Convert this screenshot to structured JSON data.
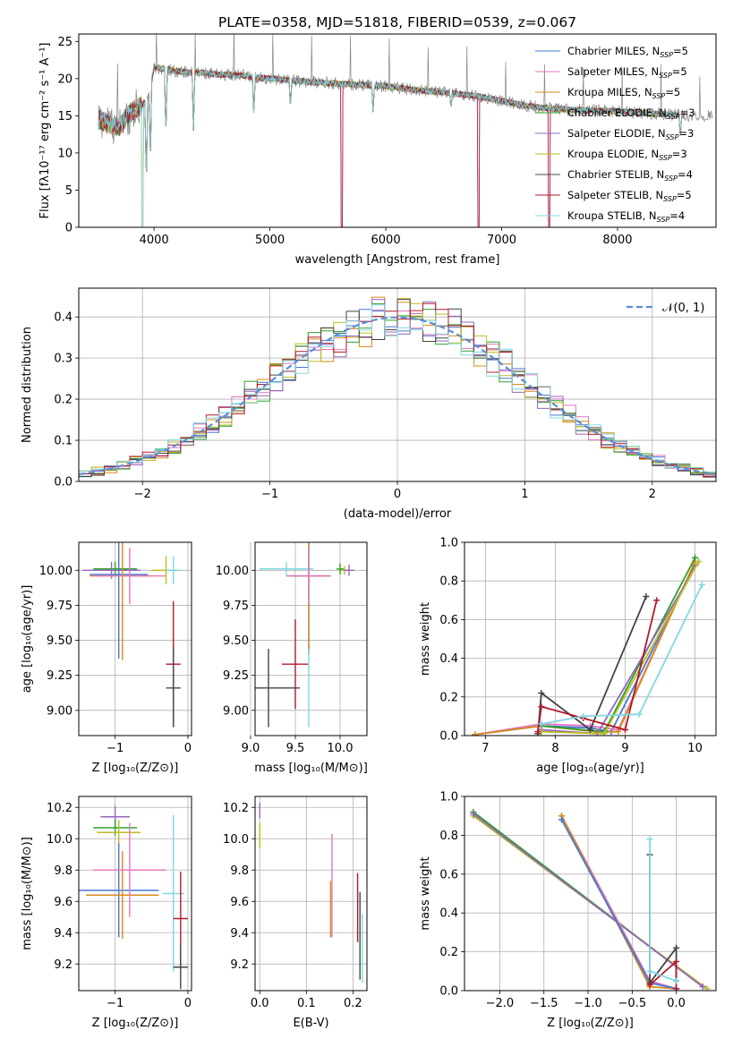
{
  "chart_data": [
    {
      "id": "spectrum",
      "type": "line",
      "title": "PLATE=0358, MJD=51818, FIBERID=0539, z=0.067",
      "xlabel": "wavelength [Angstrom, rest frame]",
      "ylabel": "Flux [fλ10⁻¹⁷ erg cm⁻² s⁻¹ A⁻¹]",
      "xlim": [
        3350,
        8850
      ],
      "ylim": [
        0,
        26
      ],
      "xticks": [
        4000,
        5000,
        6000,
        7000,
        8000
      ],
      "yticks": [
        0,
        5,
        10,
        15,
        20,
        25
      ],
      "grid": false,
      "legend_position": "top-right",
      "legend": [
        {
          "name": "Chabrier MILES, N_SSP=5",
          "main": "Chabrier MILES, N",
          "sub": "SSP",
          "tail": "=5",
          "color": "#4878d0"
        },
        {
          "name": "Salpeter MILES, N_SSP=5",
          "main": "Salpeter MILES, N",
          "sub": "SSP",
          "tail": "=5",
          "color": "#e377c2"
        },
        {
          "name": "Kroupa MILES, N_SSP=5",
          "main": "Kroupa MILES, N",
          "sub": "SSP",
          "tail": "=5",
          "color": "#d68b1a"
        },
        {
          "name": "Chabrier ELODIE, N_SSP=3",
          "main": "Chabrier ELODIE, N",
          "sub": "SSP",
          "tail": "=3",
          "color": "#2ca02c"
        },
        {
          "name": "Salpeter ELODIE, N_SSP=3",
          "main": "Salpeter ELODIE, N",
          "sub": "SSP",
          "tail": "=3",
          "color": "#9467bd"
        },
        {
          "name": "Kroupa ELODIE, N_SSP=3",
          "main": "Kroupa ELODIE, N",
          "sub": "SSP",
          "tail": "=3",
          "color": "#bcbd22"
        },
        {
          "name": "Chabrier STELIB, N_SSP=4",
          "main": "Chabrier STELIB, N",
          "sub": "SSP",
          "tail": "=4",
          "color": "#444444"
        },
        {
          "name": "Salpeter STELIB, N_SSP=5",
          "main": "Salpeter STELIB, N",
          "sub": "SSP",
          "tail": "=5",
          "color": "#b2182b"
        },
        {
          "name": "Kroupa STELIB, N_SSP=4",
          "main": "Kroupa STELIB, N",
          "sub": "SSP",
          "tail": "=4",
          "color": "#80d8e0"
        }
      ],
      "continuum": {
        "x": [
          3520,
          3600,
          3700,
          3800,
          3900,
          3950,
          4000,
          4100,
          4200,
          4300,
          4400,
          4500,
          4700,
          5000,
          5300,
          5600,
          6000,
          6300,
          6600,
          6800,
          7000,
          7200,
          7400,
          7600,
          8000,
          8400,
          8800
        ],
        "y": [
          14.5,
          14.0,
          13.5,
          15.5,
          16.5,
          17.5,
          21.5,
          21.3,
          21.0,
          20.8,
          20.8,
          20.6,
          20.5,
          20.0,
          19.6,
          19.3,
          19.0,
          18.4,
          18.0,
          17.6,
          17.0,
          16.4,
          16.0,
          15.8,
          15.6,
          15.2,
          15.0
        ]
      },
      "absorption_lines": [
        {
          "x": 3933,
          "y": 5.5
        },
        {
          "x": 3968,
          "y": 8.5
        },
        {
          "x": 4102,
          "y": 12
        },
        {
          "x": 4340,
          "y": 13
        },
        {
          "x": 4861,
          "y": 15
        },
        {
          "x": 5177,
          "y": 16
        },
        {
          "x": 5890,
          "y": 15.5
        },
        {
          "x": 6563,
          "y": 16
        },
        {
          "x": 8542,
          "y": 12
        }
      ],
      "gap_drops": [
        {
          "x": 3900,
          "y": 0
        },
        {
          "x": 5620,
          "y": 0
        },
        {
          "x": 6800,
          "y": 0
        },
        {
          "x": 7410,
          "y": 0
        }
      ]
    },
    {
      "id": "residuals",
      "type": "step",
      "xlabel": "(data-model)/error",
      "ylabel": "Normed distribution",
      "xlim": [
        -2.5,
        2.5
      ],
      "ylim": [
        0,
        0.47
      ],
      "xticks": [
        -2,
        -1,
        0,
        1,
        2
      ],
      "yticks": [
        0.0,
        0.1,
        0.2,
        0.3,
        0.4
      ],
      "grid": true,
      "legend": "𝒩(0, 1)",
      "bins": {
        "start": -2.5,
        "width": 0.1,
        "count": 50
      },
      "gaussian_mean": 0,
      "gaussian_sigma": 1,
      "gaussian_color": "#5a8fd6"
    },
    {
      "id": "age-vs-Z",
      "type": "errorbar",
      "xlabel": "Z [log₁₀(Z/Z⊙)]",
      "ylabel": "age  [log₁₀(age/yr)]",
      "xlim": [
        -1.5,
        0.05
      ],
      "ylim": [
        8.82,
        10.2
      ],
      "xticks": [
        -1,
        0
      ],
      "yticks": [
        9.0,
        9.25,
        9.5,
        9.75,
        10.0
      ],
      "grid": true,
      "points": [
        {
          "x": -1.0,
          "y": 10.01,
          "xe": 0.3,
          "ye": 0.05,
          "c": "#2ca02c"
        },
        {
          "x": -1.05,
          "y": 10.0,
          "xe": 0.4,
          "ye": 0.06,
          "c": "#9467bd"
        },
        {
          "x": -0.95,
          "y": 9.97,
          "xe": 0.4,
          "ye": 0.6,
          "c": "#4878d0"
        },
        {
          "x": -0.9,
          "y": 9.96,
          "xe": 0.45,
          "ye": 0.6,
          "c": "#d68b1a"
        },
        {
          "x": -0.8,
          "y": 9.96,
          "xe": 0.5,
          "ye": 0.2,
          "c": "#e377c2"
        },
        {
          "x": -0.3,
          "y": 10.0,
          "xe": 0.2,
          "ye": 0.1,
          "c": "#bcbd22"
        },
        {
          "x": -0.2,
          "y": 10.0,
          "xe": 0.1,
          "ye": 0.1,
          "c": "#80d8e0"
        },
        {
          "x": -0.2,
          "y": 9.33,
          "xe": 0.1,
          "ye": 0.45,
          "c": "#b2182b"
        },
        {
          "x": -0.2,
          "y": 9.16,
          "xe": 0.1,
          "ye": 0.28,
          "c": "#444444"
        }
      ]
    },
    {
      "id": "age-vs-mass",
      "type": "errorbar",
      "xlabel": "mass [log₁₀(M/M⊙)]",
      "ylabel": "",
      "xlim": [
        9.05,
        10.3
      ],
      "ylim": [
        8.82,
        10.2
      ],
      "xticks": [
        9.0,
        9.5,
        10.0
      ],
      "yticks": [
        9.0,
        9.25,
        9.5,
        9.75,
        10.0
      ],
      "grid": true,
      "points": [
        {
          "x": 9.4,
          "y": 10.01,
          "xe": 0.3,
          "ye": 0.05,
          "c": "#80d8e0"
        },
        {
          "x": 10.05,
          "y": 10.0,
          "xe": 0.05,
          "ye": 0.03,
          "c": "#bcbd22"
        },
        {
          "x": 10.1,
          "y": 10.0,
          "xe": 0.06,
          "ye": 0.04,
          "c": "#9467bd"
        },
        {
          "x": 10.0,
          "y": 10.01,
          "xe": 0.04,
          "ye": 0.04,
          "c": "#2ca02c"
        },
        {
          "x": 9.65,
          "y": 9.96,
          "xe": 0.2,
          "ye": 0.56,
          "c": "#4878d0"
        },
        {
          "x": 9.65,
          "y": 9.96,
          "xe": 0.25,
          "ye": 0.55,
          "c": "#d68b1a"
        },
        {
          "x": 9.65,
          "y": 9.96,
          "xe": 0.25,
          "ye": 0.2,
          "c": "#e377c2"
        },
        {
          "x": 9.5,
          "y": 9.33,
          "xe": 0.15,
          "ye": 0.32,
          "c": "#b2182b"
        },
        {
          "x": 9.2,
          "y": 9.16,
          "xe": 0.35,
          "ye": 0.28,
          "c": "#444444"
        },
        {
          "x": 9.65,
          "y": 9.16,
          "xe": 0.0,
          "ye": 0.28,
          "c": "#80d8e0"
        }
      ]
    },
    {
      "id": "weight-vs-age",
      "type": "line",
      "xlabel": "age  [log₁₀(age/yr)]",
      "ylabel": "mass weight",
      "xlim": [
        6.7,
        10.3
      ],
      "ylim": [
        0,
        1.0
      ],
      "xticks": [
        7,
        8,
        9,
        10
      ],
      "yticks": [
        0.0,
        0.2,
        0.4,
        0.6,
        0.8,
        1.0
      ],
      "grid": true,
      "series": [
        {
          "c": "#4878d0",
          "x": [
            6.85,
            7.8,
            8.5,
            8.8,
            10.0
          ],
          "y": [
            0.005,
            0.05,
            0.04,
            0.02,
            0.88
          ]
        },
        {
          "c": "#e377c2",
          "x": [
            6.85,
            7.8,
            8.5,
            8.9,
            10.0
          ],
          "y": [
            0.005,
            0.06,
            0.05,
            0.03,
            0.9
          ]
        },
        {
          "c": "#d68b1a",
          "x": [
            6.85,
            7.8,
            8.6,
            8.9,
            10.0
          ],
          "y": [
            0.005,
            0.05,
            0.02,
            0.02,
            0.9
          ]
        },
        {
          "c": "#2ca02c",
          "x": [
            7.8,
            8.7,
            10.0
          ],
          "y": [
            0.05,
            0.02,
            0.92
          ]
        },
        {
          "c": "#9467bd",
          "x": [
            7.8,
            8.6,
            10.05
          ],
          "y": [
            0.03,
            0.01,
            0.9
          ]
        },
        {
          "c": "#bcbd22",
          "x": [
            7.8,
            8.7,
            10.05
          ],
          "y": [
            0.02,
            0.01,
            0.9
          ]
        },
        {
          "c": "#444444",
          "x": [
            7.75,
            7.8,
            8.5,
            9.3
          ],
          "y": [
            0.01,
            0.22,
            0.03,
            0.72
          ]
        },
        {
          "c": "#b2182b",
          "x": [
            7.75,
            7.8,
            8.4,
            9.0,
            9.45
          ],
          "y": [
            0.02,
            0.15,
            0.09,
            0.03,
            0.7
          ]
        },
        {
          "c": "#80d8e0",
          "x": [
            7.8,
            8.4,
            9.2,
            10.1
          ],
          "y": [
            0.06,
            0.1,
            0.11,
            0.78
          ]
        }
      ]
    },
    {
      "id": "mass-vs-Z",
      "type": "errorbar",
      "xlabel": "Z [log₁₀(Z/Z⊙)]",
      "ylabel": "mass [log₁₀(M/M⊙)]",
      "xlim": [
        -1.5,
        0.05
      ],
      "ylim": [
        9.03,
        10.27
      ],
      "xticks": [
        -1,
        0
      ],
      "yticks": [
        9.2,
        9.4,
        9.6,
        9.8,
        10.0,
        10.2
      ],
      "grid": true,
      "points": [
        {
          "x": -1.0,
          "y": 10.14,
          "xe": 0.2,
          "ye": 0.07,
          "c": "#9467bd"
        },
        {
          "x": -1.0,
          "y": 10.07,
          "xe": 0.3,
          "ye": 0.05,
          "c": "#2ca02c"
        },
        {
          "x": -0.95,
          "y": 10.04,
          "xe": 0.3,
          "ye": 0.08,
          "c": "#bcbd22"
        },
        {
          "x": -0.95,
          "y": 9.67,
          "xe": 0.55,
          "ye": 0.3,
          "c": "#4878d0"
        },
        {
          "x": -0.9,
          "y": 9.64,
          "xe": 0.5,
          "ye": 0.28,
          "c": "#d68b1a"
        },
        {
          "x": -0.8,
          "y": 9.8,
          "xe": 0.5,
          "ye": 0.3,
          "c": "#e377c2"
        },
        {
          "x": -0.2,
          "y": 9.65,
          "xe": 0.15,
          "ye": 0.5,
          "c": "#80d8e0"
        },
        {
          "x": -0.1,
          "y": 9.49,
          "xe": 0.1,
          "ye": 0.3,
          "c": "#b2182b"
        },
        {
          "x": -0.1,
          "y": 9.18,
          "xe": 0.1,
          "ye": 0.14,
          "c": "#444444"
        }
      ]
    },
    {
      "id": "mass-vs-EBV",
      "type": "errorbar",
      "xlabel": "E(B-V)",
      "ylabel": "",
      "xlim": [
        -0.01,
        0.23
      ],
      "ylim": [
        9.03,
        10.27
      ],
      "xticks": [
        0.0,
        0.1,
        0.2
      ],
      "yticks": [
        9.2,
        9.4,
        9.6,
        9.8,
        10.0,
        10.2
      ],
      "grid": true,
      "points": [
        {
          "x": 0.0,
          "y": 10.18,
          "xe": 0.0,
          "ye": 0.05,
          "c": "#9467bd"
        },
        {
          "x": 0.0,
          "y": 10.02,
          "xe": 0.0,
          "ye": 0.08,
          "c": "#bcbd22"
        },
        {
          "x": 0.155,
          "y": 9.7,
          "xe": 0.0,
          "ye": 0.33,
          "c": "#e377c2"
        },
        {
          "x": 0.152,
          "y": 9.55,
          "xe": 0.0,
          "ye": 0.18,
          "c": "#d68b1a"
        },
        {
          "x": 0.21,
          "y": 9.56,
          "xe": 0.0,
          "ye": 0.22,
          "c": "#b2182b"
        },
        {
          "x": 0.215,
          "y": 9.38,
          "xe": 0.0,
          "ye": 0.28,
          "c": "#444444"
        },
        {
          "x": 0.22,
          "y": 9.3,
          "xe": 0.0,
          "ye": 0.22,
          "c": "#80d8e0"
        }
      ]
    },
    {
      "id": "weight-vs-Z",
      "type": "line",
      "xlabel": "Z [log₁₀(Z/Z⊙)]",
      "ylabel": "mass weight",
      "xlim": [
        -2.4,
        0.45
      ],
      "ylim": [
        0,
        1.0
      ],
      "xticks": [
        -2.0,
        -1.5,
        -1.0,
        -0.5,
        0.0
      ],
      "yticks": [
        0.0,
        0.2,
        0.4,
        0.6,
        0.8,
        1.0
      ],
      "grid": true,
      "series": [
        {
          "c": "#2ca02c",
          "x": [
            -2.3,
            0.3
          ],
          "y": [
            0.92,
            0.02
          ]
        },
        {
          "c": "#bcbd22",
          "x": [
            -2.3,
            0.35
          ],
          "y": [
            0.9,
            0.01
          ]
        },
        {
          "c": "#9467bd",
          "x": [
            -2.3,
            0.3
          ],
          "y": [
            0.91,
            0.02
          ]
        },
        {
          "c": "#e377c2",
          "x": [
            -1.3,
            -0.3,
            0.0
          ],
          "y": [
            0.9,
            0.05,
            0.01
          ]
        },
        {
          "c": "#d68b1a",
          "x": [
            -1.3,
            -0.3,
            0.0
          ],
          "y": [
            0.9,
            0.02,
            0.01
          ]
        },
        {
          "c": "#4878d0",
          "x": [
            -1.3,
            -0.3,
            0.0
          ],
          "y": [
            0.88,
            0.04,
            0.01
          ]
        },
        {
          "c": "#444444",
          "x": [
            -0.3,
            -0.3,
            0.0,
            0.0
          ],
          "y": [
            0.7,
            0.04,
            0.22,
            0.05
          ]
        },
        {
          "c": "#b2182b",
          "x": [
            -0.3,
            0.0,
            0.0
          ],
          "y": [
            0.03,
            0.15,
            0.01
          ]
        },
        {
          "c": "#80d8e0",
          "x": [
            -0.3,
            -0.3,
            0.0
          ],
          "y": [
            0.78,
            0.1,
            0.05
          ]
        }
      ]
    }
  ]
}
